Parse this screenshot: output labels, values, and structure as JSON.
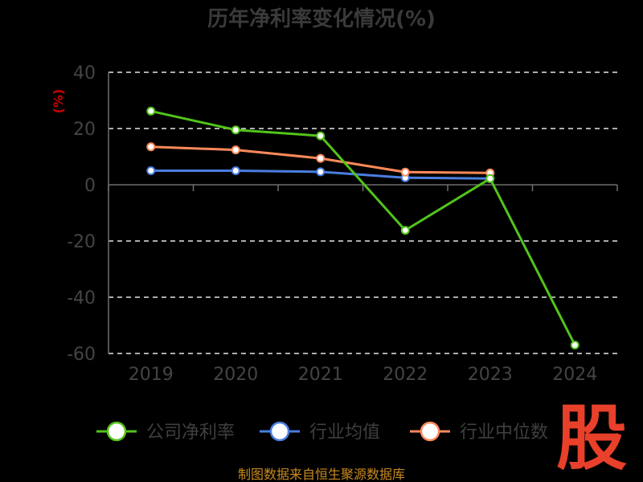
{
  "chart_data": {
    "type": "line",
    "title": "历年净利率变化情况(%)",
    "ylabel": "(%)",
    "categories": [
      "2019",
      "2020",
      "2021",
      "2022",
      "2023",
      "2024"
    ],
    "ylim": [
      -60,
      40
    ],
    "yticks": [
      "40",
      "20",
      "0",
      "-20",
      "-40",
      "-60"
    ],
    "ytick_values": [
      40,
      20,
      0,
      -20,
      -40,
      -60
    ],
    "grid": true,
    "legend_position": "bottom",
    "series": [
      {
        "name": "公司净利率",
        "color": "#52c41a",
        "values": [
          26.2,
          19.5,
          17.4,
          -16.2,
          2.2,
          -57.0
        ]
      },
      {
        "name": "行业均值",
        "color": "#4a7ee0",
        "values": [
          5.0,
          5.0,
          4.6,
          2.5,
          2.2,
          null
        ]
      },
      {
        "name": "行业中位数",
        "color": "#ff8a5a",
        "values": [
          13.5,
          12.4,
          9.4,
          4.5,
          4.2,
          null
        ]
      }
    ]
  },
  "footer": {
    "source": "制图数据来自恒生聚源数据库",
    "logo_text": "股"
  }
}
